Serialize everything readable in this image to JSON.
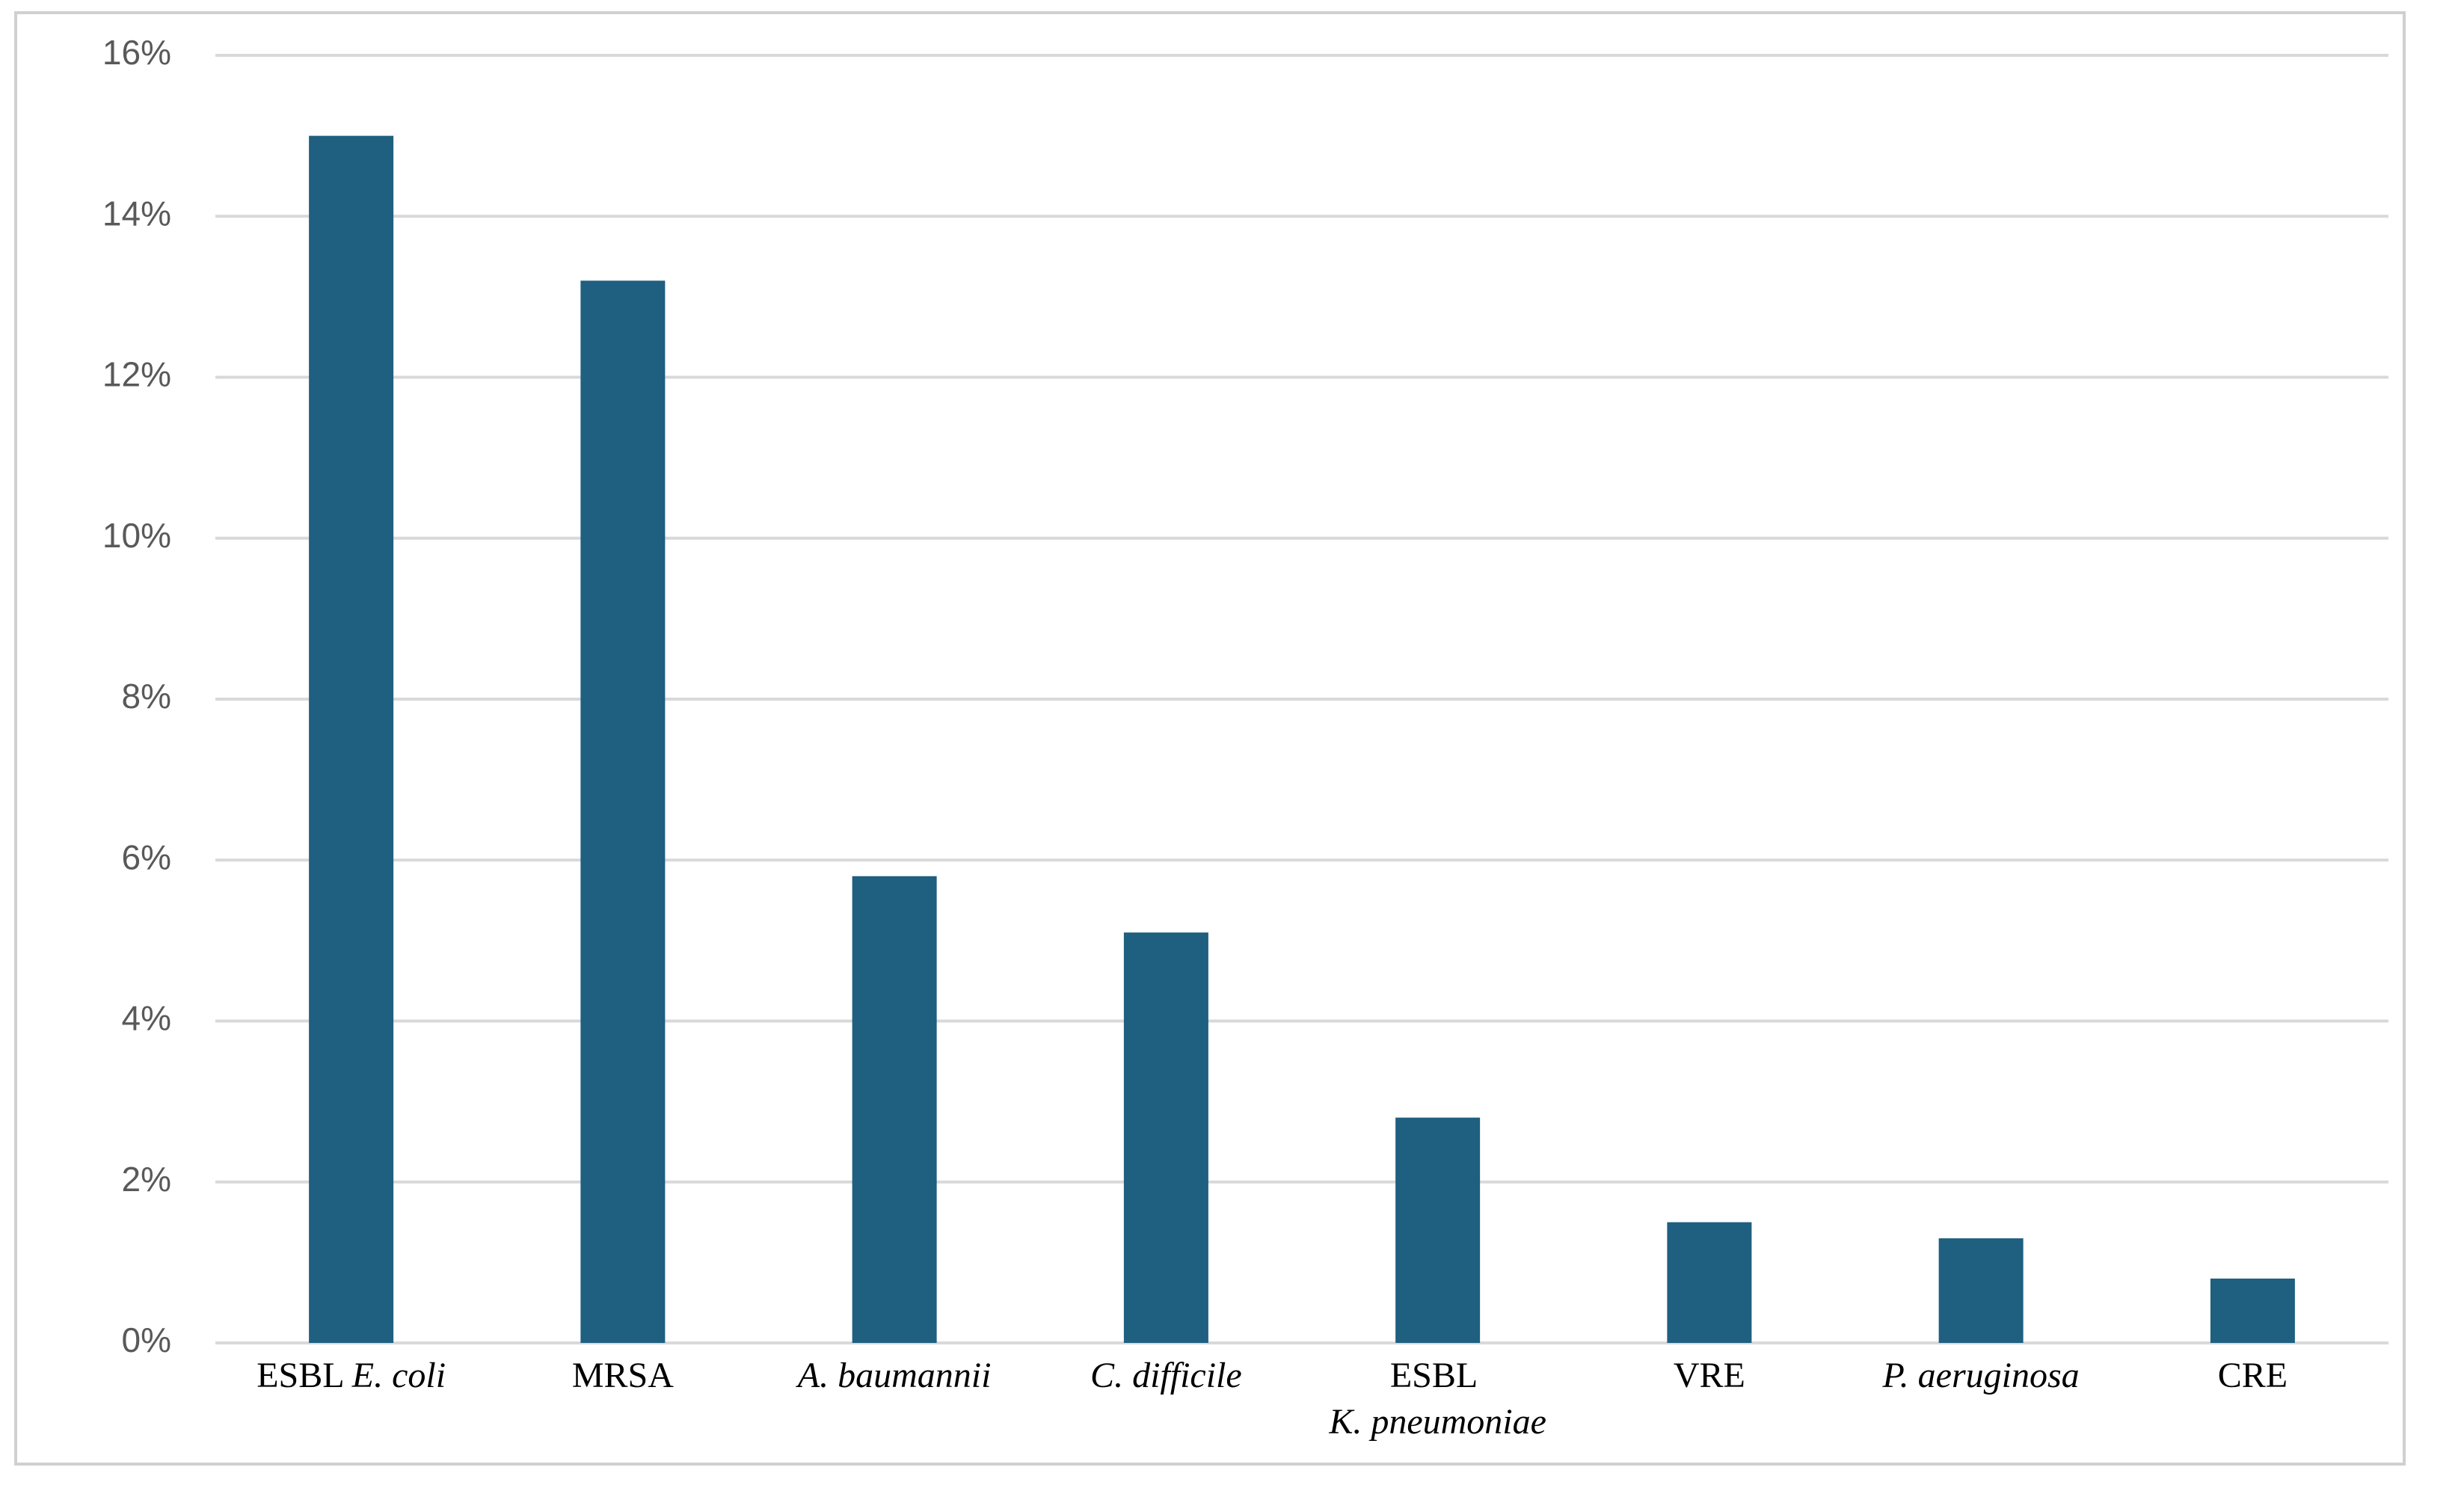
{
  "chart_data": {
    "type": "bar",
    "categories": [
      "ESBL E. coli",
      "MRSA",
      "A. baumannii",
      "C. difficile",
      "ESBL K. pneumoniae",
      "VRE",
      "P. aeruginosa",
      "CRE"
    ],
    "values": [
      15,
      13.2,
      5.8,
      5.1,
      2.8,
      1.5,
      1.3,
      0.8
    ],
    "color": "#1f5f80",
    "ylim": [
      0,
      16
    ],
    "yticks": [
      {
        "value": 0,
        "label": "0%"
      },
      {
        "value": 2,
        "label": "2%"
      },
      {
        "value": 4,
        "label": "4%"
      },
      {
        "value": 6,
        "label": "6%"
      },
      {
        "value": 8,
        "label": "8%"
      },
      {
        "value": 10,
        "label": "10%"
      },
      {
        "value": 12,
        "label": "12%"
      },
      {
        "value": 14,
        "label": "14%"
      },
      {
        "value": 16,
        "label": "16%"
      }
    ],
    "grid": true
  }
}
